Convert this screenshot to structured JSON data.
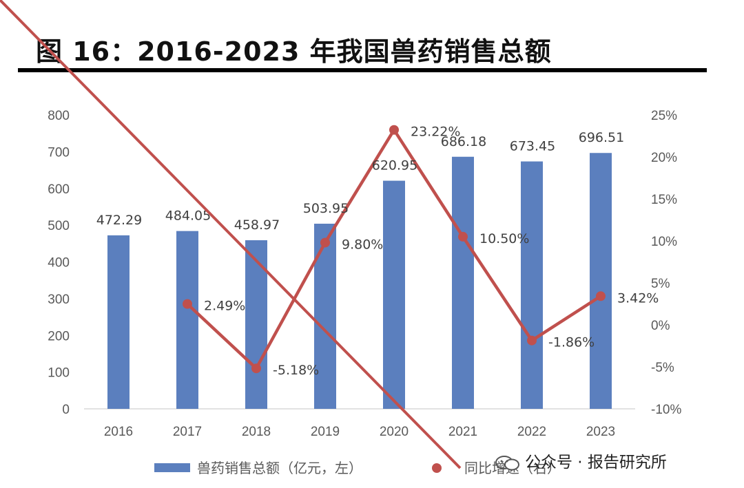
{
  "title": "图 16：2016-2023 年我国兽药销售总额",
  "chart_data": {
    "type": "bar",
    "categories": [
      "2016",
      "2017",
      "2018",
      "2019",
      "2020",
      "2021",
      "2022",
      "2023"
    ],
    "series": [
      {
        "name": "兽药销售总额（亿元，左）",
        "type": "bar",
        "axis": "left",
        "color": "#5b7fbe",
        "values": [
          472.29,
          484.05,
          458.97,
          503.95,
          620.95,
          686.18,
          673.45,
          696.51
        ],
        "labels": [
          "472.29",
          "484.05",
          "458.97",
          "503.95",
          "620.95",
          "686.18",
          "673.45",
          "696.51"
        ]
      },
      {
        "name": "同比增速（右）",
        "type": "line",
        "axis": "right",
        "color": "#c0504d",
        "values": [
          null,
          2.49,
          -5.18,
          9.8,
          23.22,
          10.5,
          -1.86,
          3.42
        ],
        "labels": [
          "",
          "2.49%",
          "-5.18%",
          "9.80%",
          "23.22%",
          "10.50%",
          "-1.86%",
          "3.42%"
        ]
      }
    ],
    "y_left": {
      "min": 0,
      "max": 800,
      "ticks": [
        "0",
        "100",
        "200",
        "300",
        "400",
        "500",
        "600",
        "700",
        "800"
      ]
    },
    "y_right": {
      "min": -10,
      "max": 25,
      "ticks": [
        "-10%",
        "-5%",
        "0%",
        "5%",
        "10%",
        "15%",
        "20%",
        "25%"
      ]
    },
    "grid": false,
    "legend": "bottom"
  },
  "watermark": "公众号 · 报告研究所"
}
